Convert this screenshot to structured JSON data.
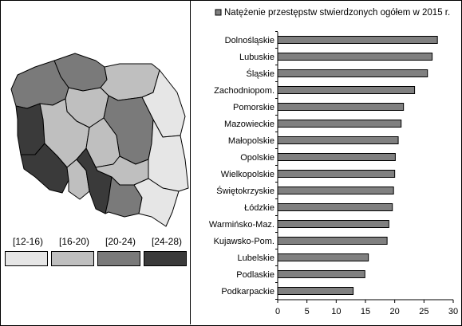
{
  "legend": {
    "classes": [
      {
        "label": "[12-16)",
        "color": "#e6e6e6"
      },
      {
        "label": "[16-20)",
        "color": "#bfbfbf"
      },
      {
        "label": "[20-24)",
        "color": "#7a7a7a"
      },
      {
        "label": "[24-28)",
        "color": "#3a3a3a"
      }
    ]
  },
  "chart_data": {
    "type": "bar",
    "orientation": "horizontal",
    "legend": "Natężenie przestępstw stwierdzonych ogółem w 2015 r.",
    "legend_position": "top",
    "bar_color": "#808080",
    "categories": [
      "Dolnośląskie",
      "Lubuskie",
      "Śląskie",
      "Zachodniopom.",
      "Pomorskie",
      "Mazowieckie",
      "Małopolskie",
      "Opolskie",
      "Wielkopolskie",
      "Świętokrzyskie",
      "Łódzkie",
      "Warmińsko-Maz.",
      "Kujawsko-Pom.",
      "Lubelskie",
      "Podlaskie",
      "Podkarpackie"
    ],
    "values": [
      27.3,
      26.4,
      25.6,
      23.4,
      21.5,
      21.1,
      20.6,
      20.1,
      20.0,
      19.8,
      19.6,
      19.0,
      18.7,
      15.5,
      14.9,
      12.9
    ],
    "xlim": [
      0,
      30
    ],
    "xticks": [
      0,
      5,
      10,
      15,
      20,
      25,
      30
    ],
    "grid": false
  }
}
